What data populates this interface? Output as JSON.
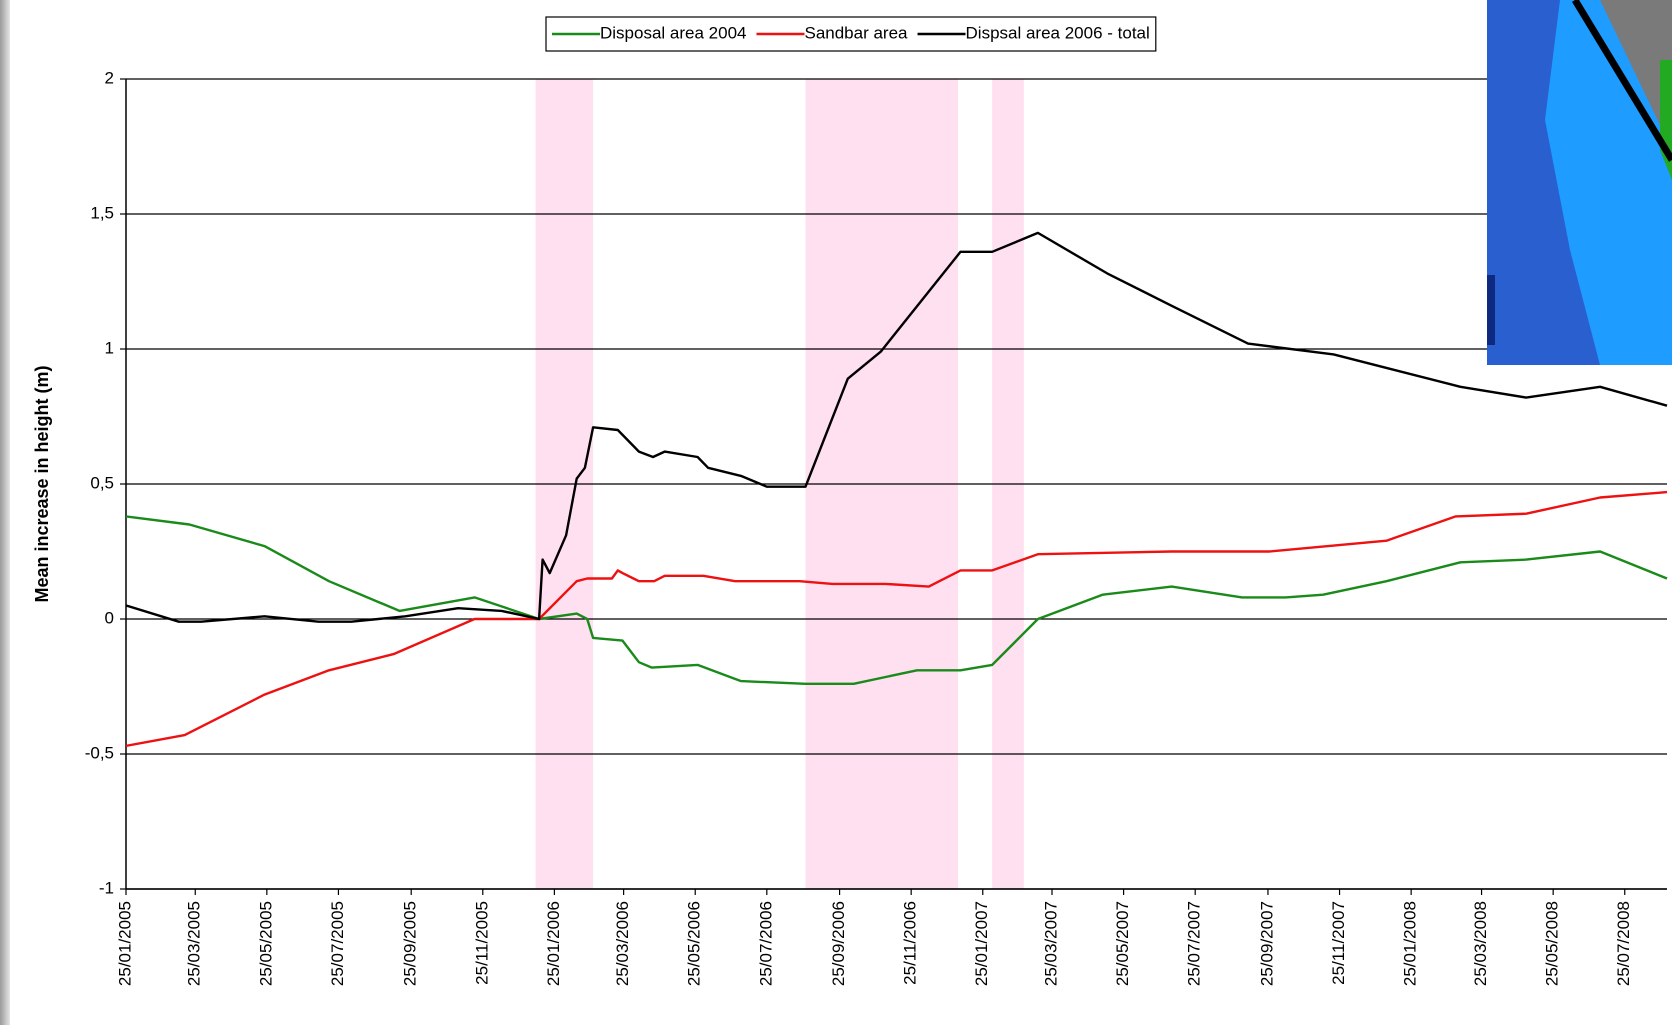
{
  "chart_data": {
    "type": "line",
    "y_label": "Mean increase in height (m)",
    "xlim": [
      "25/01/2005",
      "30/08/2008"
    ],
    "xticks": [
      "25/01/2005",
      "25/03/2005",
      "25/05/2005",
      "25/07/2005",
      "25/09/2005",
      "25/11/2005",
      "25/01/2006",
      "25/03/2006",
      "25/05/2006",
      "25/07/2006",
      "25/09/2006",
      "25/11/2006",
      "25/01/2007",
      "25/03/2007",
      "25/05/2007",
      "25/07/2007",
      "25/09/2007",
      "25/11/2007",
      "25/01/2008",
      "25/03/2008",
      "25/05/2008",
      "25/07/2008"
    ],
    "ylim": [
      -1,
      2
    ],
    "yticks": [
      -1,
      {
        "value": -0.5,
        "label": "-0,5"
      },
      0,
      {
        "value": 0.5,
        "label": "0,5"
      },
      1,
      {
        "value": 1.5,
        "label": "1,5"
      },
      2
    ],
    "grid": true,
    "legend": "top",
    "shaded_periods": {
      "color": "#ffe0f0",
      "spans": [
        [
          "09/01/2006",
          "27/02/2006"
        ],
        [
          "27/08/2006",
          "04/01/2007"
        ],
        [
          "02/02/2007",
          "01/03/2007"
        ]
      ]
    },
    "series": [
      {
        "name": "Disposal area 2004",
        "color": "#1a8a1a",
        "x": [
          "25/01/2005",
          "20/03/2005",
          "23/05/2005",
          "17/07/2005",
          "15/09/2005",
          "18/11/2005",
          "12/01/2006",
          "13/02/2006",
          "22/02/2006",
          "27/02/2006",
          "24/03/2006",
          "07/04/2006",
          "18/04/2006",
          "27/05/2006",
          "03/07/2006",
          "27/08/2006",
          "07/10/2006",
          "30/11/2006",
          "06/01/2007",
          "02/02/2007",
          "13/03/2007",
          "07/05/2007",
          "05/07/2007",
          "03/09/2007",
          "10/10/2007",
          "11/11/2007",
          "04/01/2008",
          "07/03/2008",
          "02/05/2008",
          "04/07/2008",
          "30/08/2008"
        ],
        "values": [
          0.38,
          0.35,
          0.27,
          0.14,
          0.03,
          0.08,
          0.0,
          0.02,
          0.0,
          -0.07,
          -0.08,
          -0.16,
          -0.18,
          -0.17,
          -0.23,
          -0.24,
          -0.24,
          -0.19,
          -0.19,
          -0.17,
          0.0,
          0.09,
          0.12,
          0.08,
          0.08,
          0.09,
          0.14,
          0.21,
          0.22,
          0.25,
          0.15
        ]
      },
      {
        "name": "Sandbar area",
        "color": "#ee1111",
        "x": [
          "25/01/2005",
          "16/03/2005",
          "23/05/2005",
          "17/07/2005",
          "10/09/2005",
          "18/11/2005",
          "12/01/2006",
          "13/02/2006",
          "22/02/2006",
          "15/03/2006",
          "20/03/2006",
          "24/03/2006",
          "07/04/2006",
          "20/04/2006",
          "29/04/2006",
          "01/06/2006",
          "28/06/2006",
          "22/08/2006",
          "19/09/2006",
          "03/11/2006",
          "10/12/2006",
          "06/01/2007",
          "02/02/2007",
          "13/03/2007",
          "05/07/2007",
          "26/09/2007",
          "04/01/2008",
          "03/03/2008",
          "02/05/2008",
          "04/07/2008",
          "30/08/2008"
        ],
        "values": [
          -0.47,
          -0.43,
          -0.28,
          -0.19,
          -0.13,
          0.0,
          0.0,
          0.14,
          0.15,
          0.15,
          0.18,
          0.17,
          0.14,
          0.14,
          0.16,
          0.16,
          0.14,
          0.14,
          0.13,
          0.13,
          0.12,
          0.18,
          0.18,
          0.24,
          0.25,
          0.25,
          0.29,
          0.38,
          0.39,
          0.45,
          0.47
        ]
      },
      {
        "name": "Dispsal area 2006 - total",
        "color": "#000000",
        "x": [
          "25/01/2005",
          "11/03/2005",
          "30/03/2005",
          "23/05/2005",
          "08/07/2005",
          "05/08/2005",
          "20/09/2005",
          "04/11/2005",
          "11/12/2005",
          "12/01/2006",
          "15/01/2006",
          "21/01/2006",
          "04/02/2006",
          "13/02/2006",
          "20/02/2006",
          "27/02/2006",
          "20/03/2006",
          "07/04/2006",
          "19/04/2006",
          "29/04/2006",
          "27/05/2006",
          "05/06/2006",
          "03/07/2006",
          "25/07/2006",
          "27/08/2006",
          "02/10/2006",
          "30/10/2006",
          "06/01/2007",
          "02/02/2007",
          "13/03/2007",
          "11/05/2007",
          "05/07/2007",
          "08/09/2007",
          "20/11/2007",
          "04/01/2008",
          "07/03/2008",
          "02/05/2008",
          "04/07/2008",
          "30/08/2008"
        ],
        "values": [
          0.05,
          -0.01,
          -0.01,
          0.01,
          -0.01,
          -0.01,
          0.01,
          0.04,
          0.03,
          0.0,
          0.22,
          0.17,
          0.31,
          0.52,
          0.56,
          0.71,
          0.7,
          0.62,
          0.6,
          0.62,
          0.6,
          0.56,
          0.53,
          0.49,
          0.49,
          0.89,
          0.99,
          1.36,
          1.36,
          1.43,
          1.28,
          1.16,
          1.02,
          0.98,
          0.93,
          0.86,
          0.82,
          0.86,
          0.79
        ]
      }
    ]
  }
}
